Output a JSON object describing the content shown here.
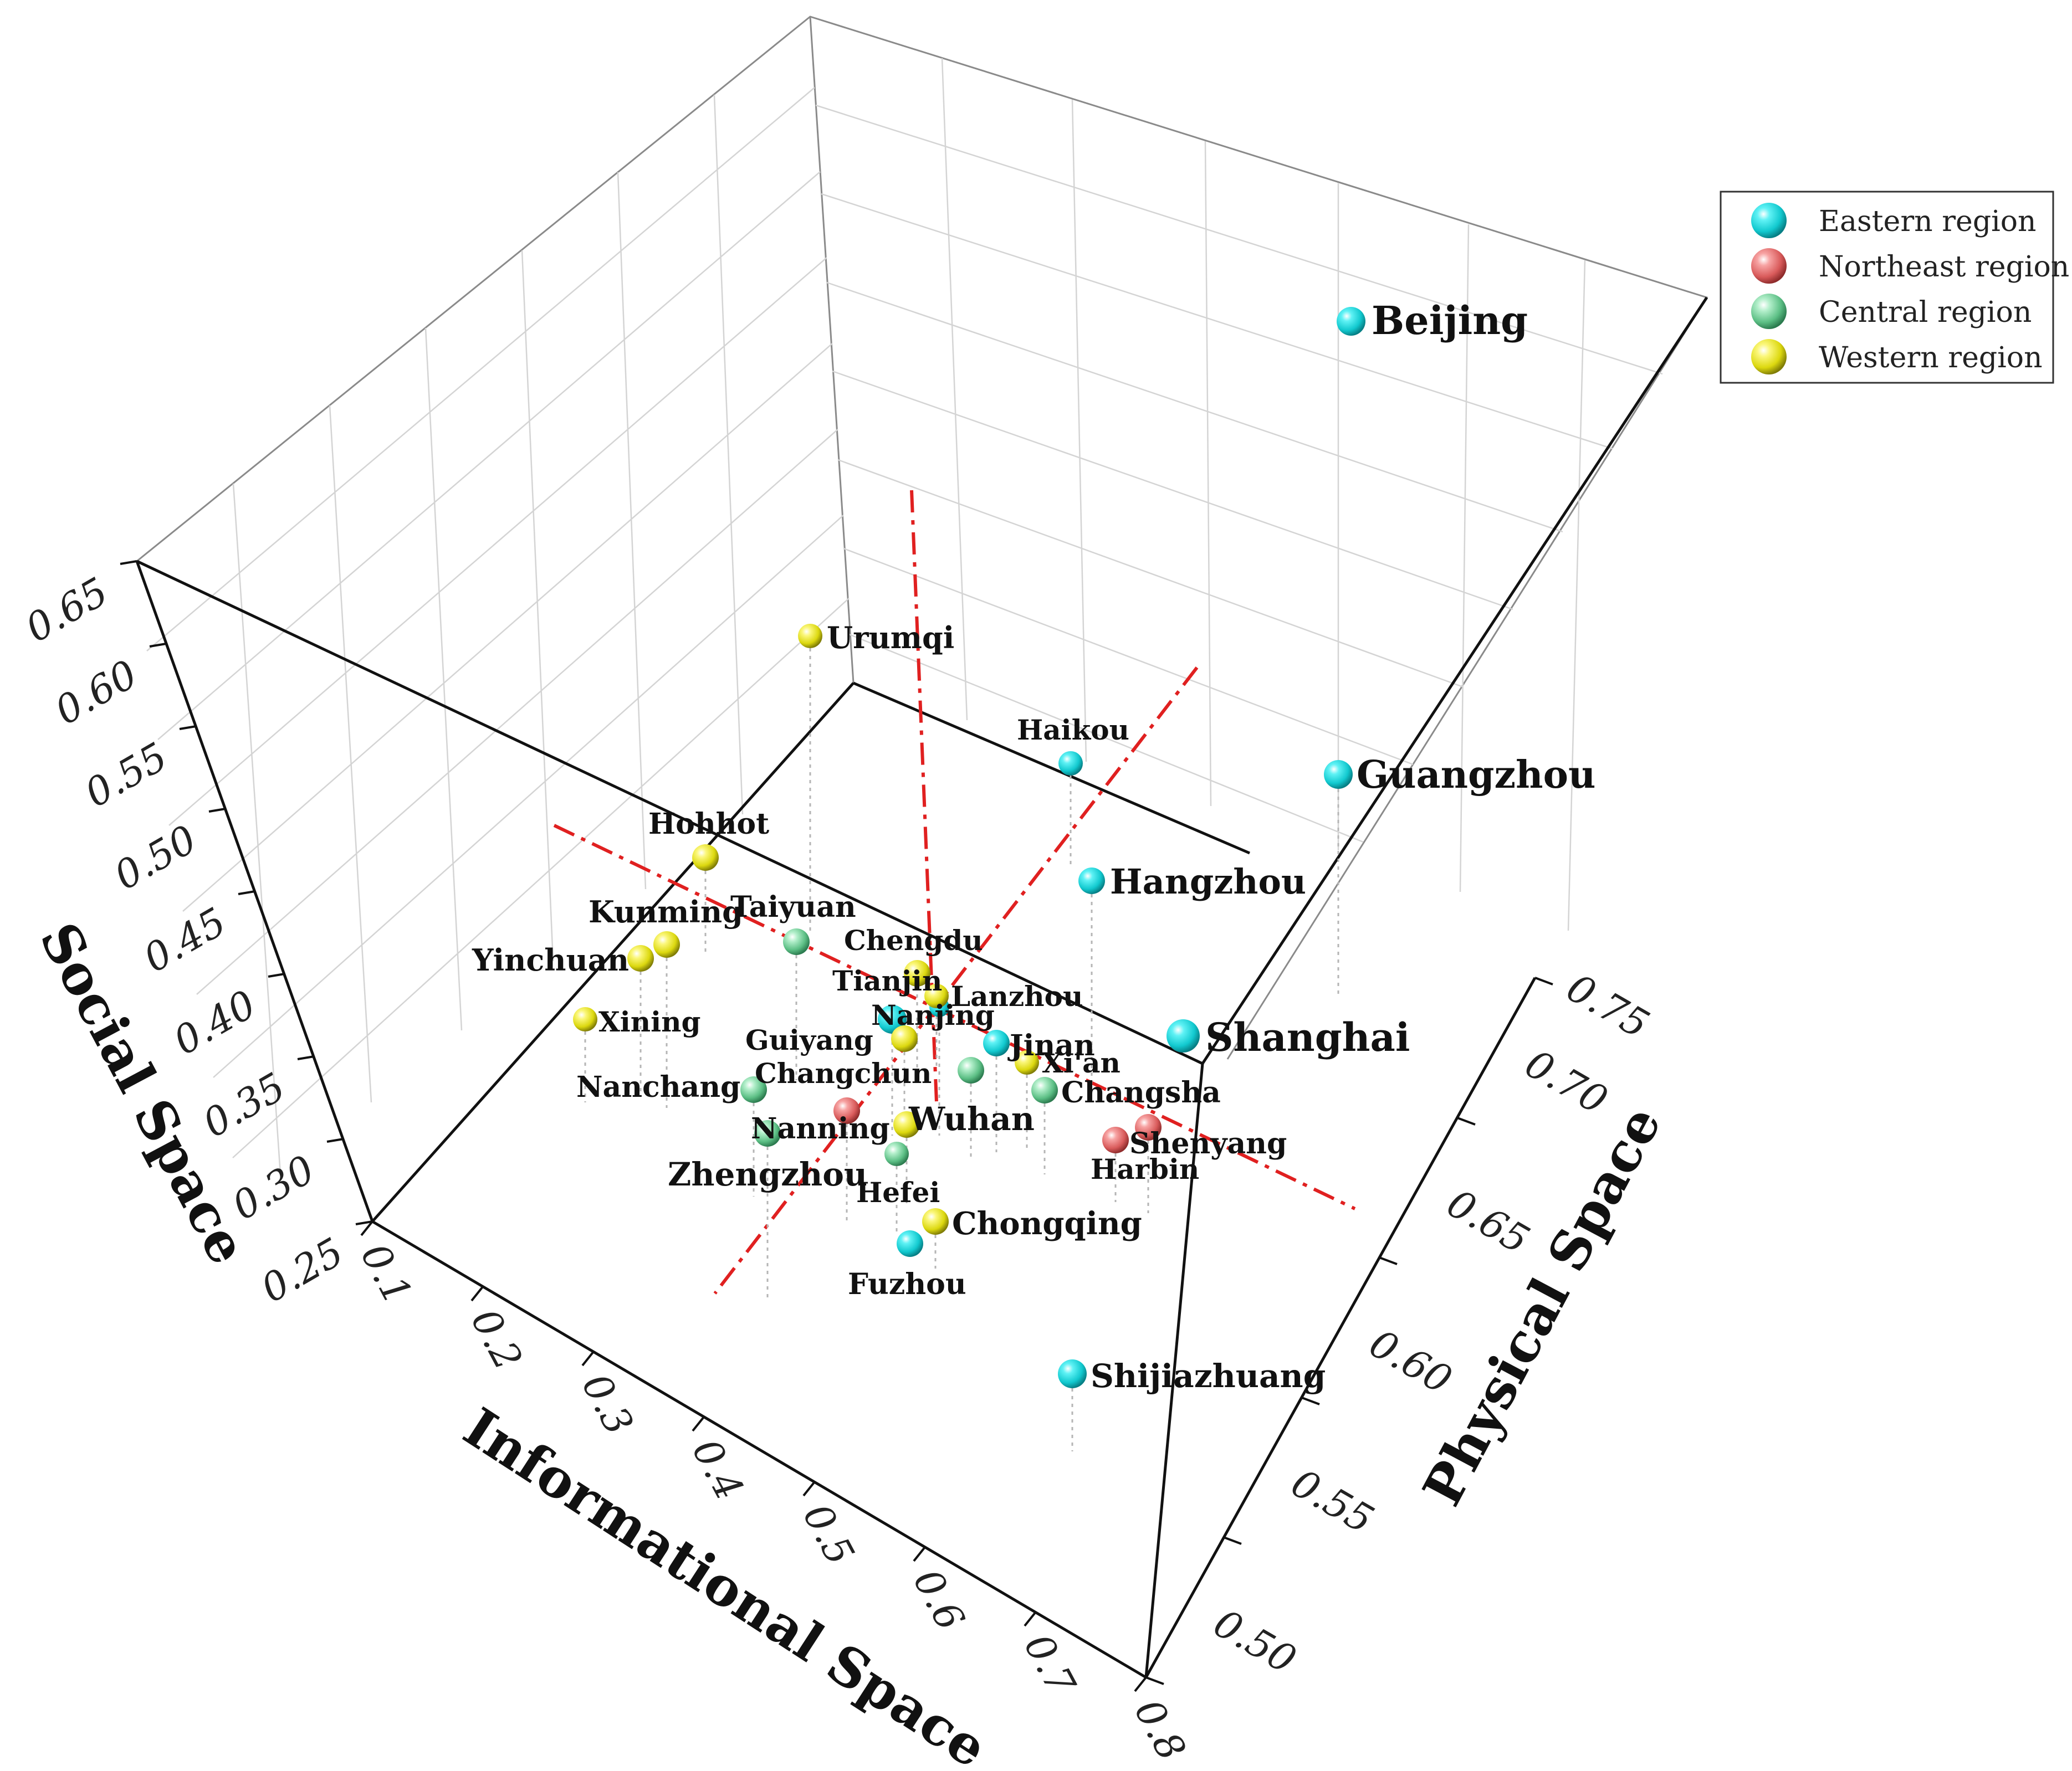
{
  "chart_data": {
    "type": "scatter3d",
    "axes": {
      "social": {
        "title": "Social Space",
        "ticks": [
          "0.25",
          "0.30",
          "0.35",
          "0.40",
          "0.45",
          "0.50",
          "0.55",
          "0.60",
          "0.65"
        ],
        "range": [
          0.25,
          0.65
        ]
      },
      "informational": {
        "title": "Informational Space",
        "ticks": [
          "0.1",
          "0.2",
          "0.3",
          "0.4",
          "0.5",
          "0.6",
          "0.7",
          "0.8"
        ],
        "range": [
          0.1,
          0.8
        ]
      },
      "physical": {
        "title": "Physical Space",
        "ticks": [
          "0.50",
          "0.55",
          "0.60",
          "0.65",
          "0.70",
          "0.75"
        ],
        "range": [
          0.5,
          0.75
        ]
      }
    },
    "legend": [
      {
        "name": "Eastern region",
        "color": "#19d8dc"
      },
      {
        "name": "Northeast region",
        "color": "#e86a6a"
      },
      {
        "name": "Central region",
        "color": "#6fd39a"
      },
      {
        "name": "Western region",
        "color": "#e6e21a"
      }
    ],
    "points": [
      {
        "city": "Beijing",
        "region": "Eastern region"
      },
      {
        "city": "Guangzhou",
        "region": "Eastern region"
      },
      {
        "city": "Haikou",
        "region": "Eastern region"
      },
      {
        "city": "Hangzhou",
        "region": "Eastern region"
      },
      {
        "city": "Shanghai",
        "region": "Eastern region"
      },
      {
        "city": "Nanjing",
        "region": "Eastern region"
      },
      {
        "city": "Jinan",
        "region": "Eastern region"
      },
      {
        "city": "Tianjin",
        "region": "Eastern region"
      },
      {
        "city": "Fuzhou",
        "region": "Eastern region"
      },
      {
        "city": "Shijiazhuang",
        "region": "Eastern region"
      },
      {
        "city": "Changchun",
        "region": "Northeast region"
      },
      {
        "city": "Shenyang",
        "region": "Northeast region"
      },
      {
        "city": "Harbin",
        "region": "Northeast region"
      },
      {
        "city": "Taiyuan",
        "region": "Central region"
      },
      {
        "city": "Nanchang",
        "region": "Central region"
      },
      {
        "city": "Zhengzhou",
        "region": "Central region"
      },
      {
        "city": "Hefei",
        "region": "Central region"
      },
      {
        "city": "Wuhan",
        "region": "Central region"
      },
      {
        "city": "Changsha",
        "region": "Central region"
      },
      {
        "city": "Urumqi",
        "region": "Western region"
      },
      {
        "city": "Hohhot",
        "region": "Western region"
      },
      {
        "city": "Kunming",
        "region": "Western region"
      },
      {
        "city": "Yinchuan",
        "region": "Western region"
      },
      {
        "city": "Xining",
        "region": "Western region"
      },
      {
        "city": "Chengdu",
        "region": "Western region"
      },
      {
        "city": "Lanzhou",
        "region": "Western region"
      },
      {
        "city": "Guiyang",
        "region": "Western region"
      },
      {
        "city": "Xi'an",
        "region": "Western region"
      },
      {
        "city": "Nanning",
        "region": "Western region"
      },
      {
        "city": "Chongqing",
        "region": "Western region"
      }
    ]
  }
}
